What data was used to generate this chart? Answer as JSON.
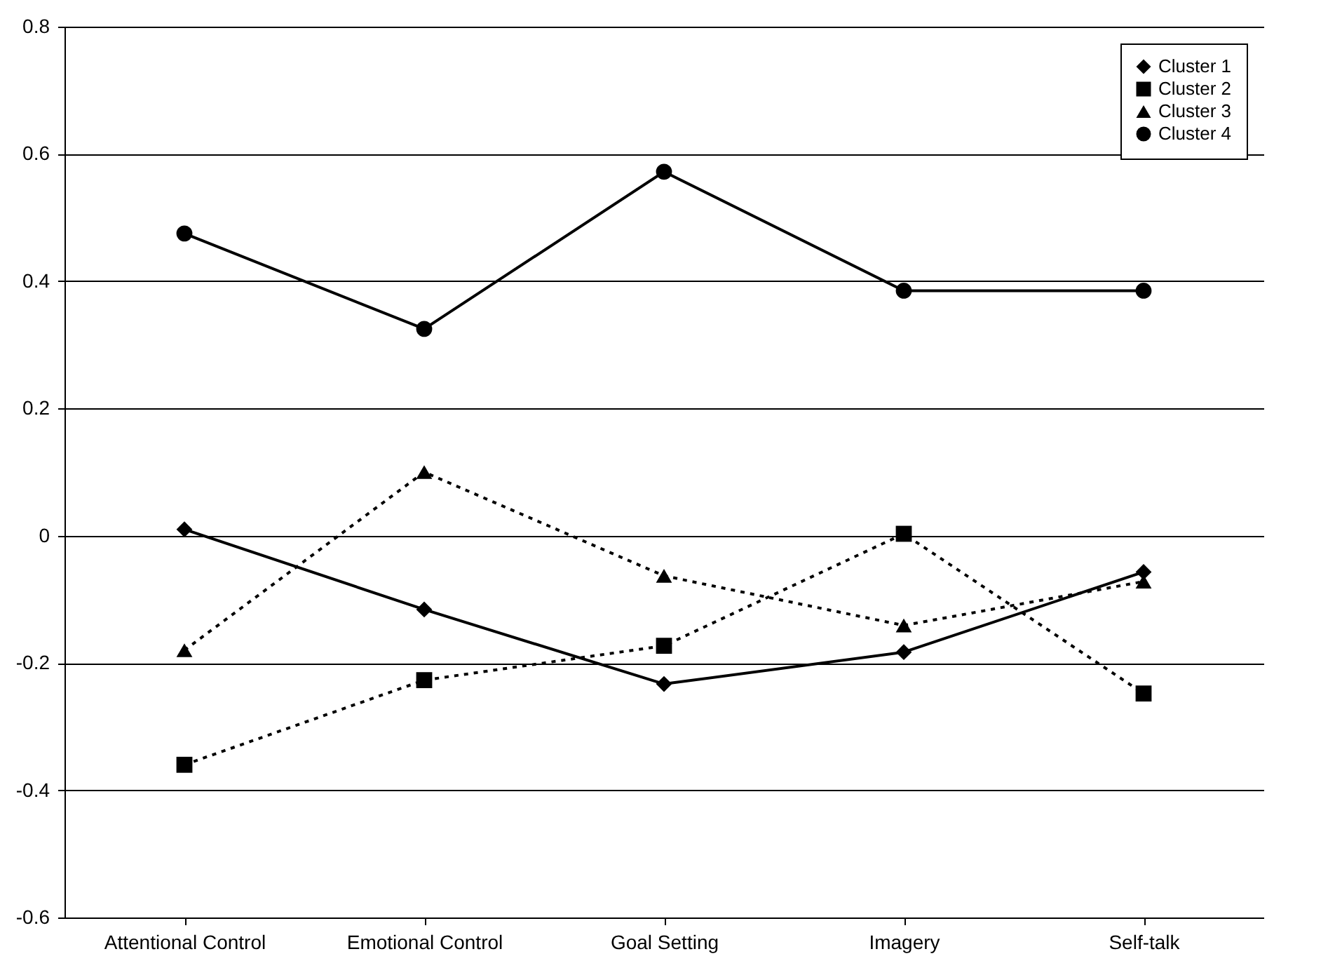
{
  "chart_data": {
    "type": "line",
    "categories": [
      "Attentional Control",
      "Emotional Control",
      "Goal Setting",
      "Imagery",
      "Self-talk"
    ],
    "series": [
      {
        "name": "Cluster 1",
        "color": "#000000",
        "marker": "diamond",
        "line_style": "solid",
        "values": [
          0.01,
          -0.116,
          -0.233,
          -0.183,
          -0.057
        ]
      },
      {
        "name": "Cluster 2",
        "color": "#000000",
        "marker": "square",
        "line_style": "dotted",
        "values": [
          -0.36,
          -0.227,
          -0.173,
          0.003,
          -0.248
        ]
      },
      {
        "name": "Cluster 3",
        "color": "#000000",
        "marker": "triangle",
        "line_style": "dotted",
        "values": [
          -0.18,
          0.1,
          -0.063,
          -0.141,
          -0.072
        ]
      },
      {
        "name": "Cluster 4",
        "color": "#000000",
        "marker": "circle",
        "line_style": "solid",
        "values": [
          0.475,
          0.325,
          0.572,
          0.385,
          0.385
        ]
      }
    ],
    "ylim": [
      -0.6,
      0.8
    ],
    "yticks": [
      -0.6,
      -0.4,
      -0.2,
      0,
      0.2,
      0.4,
      0.6,
      0.8
    ],
    "grid": "y",
    "legend": "top right"
  }
}
